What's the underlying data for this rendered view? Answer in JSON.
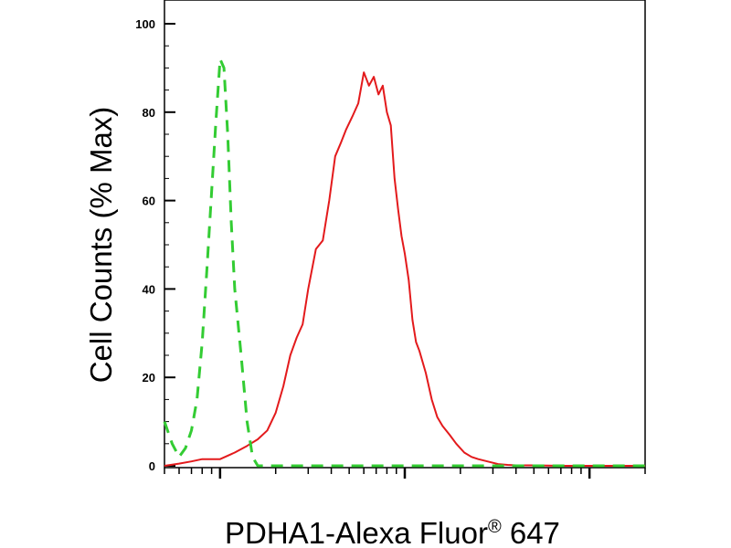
{
  "chart_data": {
    "type": "line",
    "xlabel": "PDHA1-Alexa Fluor",
    "xlabel_superscript": "®",
    "xlabel_suffix": " 647",
    "ylabel": "Cell Counts (% Max)",
    "ylim": [
      0,
      100
    ],
    "yticks": [
      0,
      20,
      40,
      60,
      80,
      100
    ],
    "yticklabels": [
      "0",
      "20",
      "40",
      "60",
      "80",
      "100"
    ],
    "x_scale": "log",
    "xlim": [
      5,
      2000
    ],
    "grid": false,
    "colors": {
      "series_red": "#e31a1c",
      "series_green": "#33cc33"
    },
    "series": [
      {
        "style": "solid",
        "color": "#e31a1c",
        "x": [
          5,
          6,
          7,
          8,
          10,
          12,
          14,
          16,
          18,
          20,
          22,
          24,
          26,
          28,
          30,
          33,
          36,
          39,
          42,
          45,
          48,
          52,
          56,
          60,
          64,
          68,
          72,
          76,
          80,
          84,
          88,
          92,
          96,
          100,
          105,
          110,
          115,
          120,
          130,
          140,
          150,
          160,
          175,
          190,
          210,
          230,
          250,
          280,
          320,
          360,
          400,
          500,
          700,
          1000,
          2000
        ],
        "y": [
          0,
          0.5,
          1,
          1.5,
          1.5,
          3,
          4.5,
          6,
          8,
          12,
          18,
          25,
          29,
          32,
          40,
          49,
          51,
          60,
          70,
          73,
          76,
          79,
          82,
          89,
          86,
          88,
          84,
          86,
          80,
          77,
          65,
          58,
          52,
          48,
          42,
          33,
          28,
          26,
          21,
          15,
          11,
          9,
          7,
          5,
          3,
          2,
          1.5,
          1,
          0.4,
          0.2,
          0.1,
          0.1,
          0,
          0,
          0
        ]
      },
      {
        "style": "dashed",
        "color": "#33cc33",
        "x": [
          5,
          5.5,
          6,
          6.5,
          7,
          7.5,
          8,
          8.5,
          9,
          9.5,
          10,
          10.5,
          11,
          11.5,
          12,
          13,
          14,
          15,
          16,
          18,
          20,
          25,
          30,
          50,
          100,
          200,
          500,
          1000,
          2000
        ],
        "y": [
          10,
          5,
          2,
          4,
          8,
          15,
          28,
          45,
          62,
          78,
          92,
          90,
          75,
          55,
          40,
          25,
          10,
          2,
          0,
          0,
          0,
          0,
          0,
          0,
          0,
          0,
          0,
          0,
          0
        ]
      }
    ]
  }
}
